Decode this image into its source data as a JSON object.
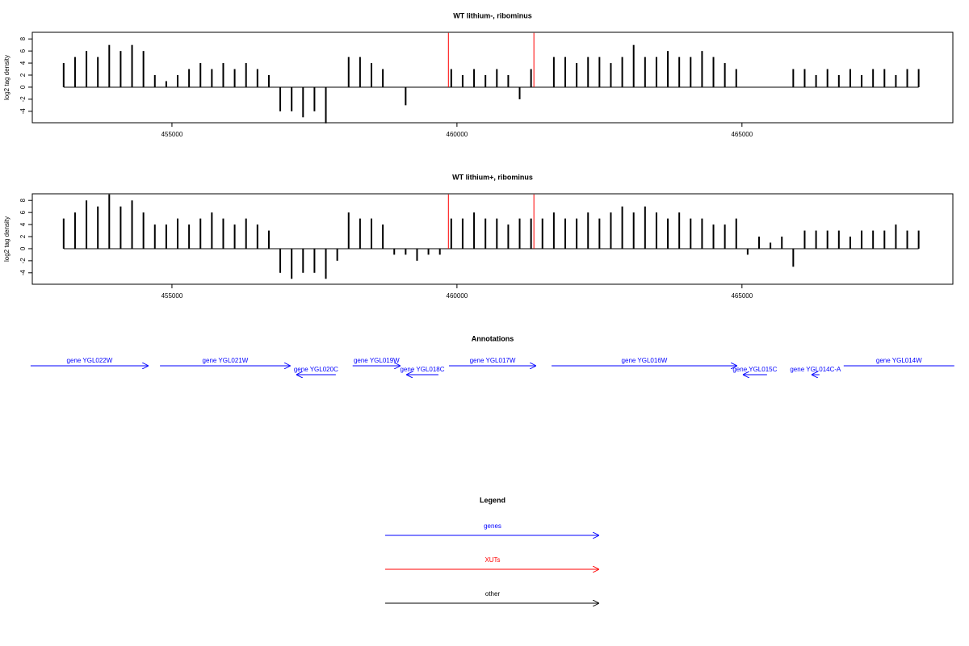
{
  "chart_data": [
    {
      "type": "bar",
      "title": "WT lithium-, ribominus",
      "y_label": "log2 tag density",
      "xlim": [
        452550,
        468700
      ],
      "ylim": [
        -5.9,
        9.1
      ],
      "xticks": [
        455000,
        460000,
        465000
      ],
      "yticks": [
        -4,
        -2,
        0,
        2,
        4,
        6,
        8
      ],
      "x": [
        453100,
        453300,
        453500,
        453700,
        453900,
        454100,
        454300,
        454500,
        454700,
        454900,
        455100,
        455300,
        455500,
        455700,
        455900,
        456100,
        456300,
        456500,
        456700,
        456900,
        457100,
        457300,
        457500,
        457700,
        457900,
        458100,
        458300,
        458500,
        458700,
        458900,
        459100,
        459300,
        459500,
        459700,
        459900,
        460100,
        460300,
        460500,
        460700,
        460900,
        461100,
        461300,
        461500,
        461700,
        461900,
        462100,
        462300,
        462500,
        462700,
        462900,
        463100,
        463300,
        463500,
        463700,
        463900,
        464100,
        464300,
        464500,
        464700,
        464900,
        465100,
        465300,
        465500,
        465700,
        465900,
        466100,
        466300,
        466500,
        466700,
        466900,
        467100,
        467300,
        467500,
        467700,
        467900,
        468100
      ],
      "values": [
        4,
        5,
        6,
        5,
        7,
        6,
        7,
        6,
        2,
        1,
        2,
        3,
        4,
        3,
        4,
        3,
        4,
        3,
        2,
        -4,
        -4,
        -5,
        -4,
        -6,
        0,
        5,
        5,
        4,
        3,
        0,
        -3,
        0,
        0,
        0,
        3,
        2,
        3,
        2,
        3,
        2,
        -2,
        3,
        0,
        5,
        5,
        4,
        5,
        5,
        4,
        5,
        7,
        5,
        5,
        6,
        5,
        5,
        6,
        5,
        4,
        3,
        0,
        0,
        0,
        0,
        3,
        3,
        2,
        3,
        2,
        3,
        2,
        3,
        3,
        2,
        3,
        3
      ],
      "color": "#000000",
      "xut_x": [
        459850,
        461350
      ],
      "xut_values": [
        9,
        9
      ],
      "xut_color": "#ff0000"
    },
    {
      "type": "bar",
      "title": "WT lithium+, ribominus",
      "y_label": "log2 tag density",
      "xlim": [
        452550,
        468700
      ],
      "ylim": [
        -5.9,
        9.1
      ],
      "xticks": [
        455000,
        460000,
        465000
      ],
      "yticks": [
        -4,
        -2,
        0,
        2,
        4,
        6,
        8
      ],
      "x": [
        453100,
        453300,
        453500,
        453700,
        453900,
        454100,
        454300,
        454500,
        454700,
        454900,
        455100,
        455300,
        455500,
        455700,
        455900,
        456100,
        456300,
        456500,
        456700,
        456900,
        457100,
        457300,
        457500,
        457700,
        457900,
        458100,
        458300,
        458500,
        458700,
        458900,
        459100,
        459300,
        459500,
        459700,
        459900,
        460100,
        460300,
        460500,
        460700,
        460900,
        461100,
        461300,
        461500,
        461700,
        461900,
        462100,
        462300,
        462500,
        462700,
        462900,
        463100,
        463300,
        463500,
        463700,
        463900,
        464100,
        464300,
        464500,
        464700,
        464900,
        465100,
        465300,
        465500,
        465700,
        465900,
        466100,
        466300,
        466500,
        466700,
        466900,
        467100,
        467300,
        467500,
        467700,
        467900,
        468100
      ],
      "values": [
        5,
        6,
        8,
        7,
        9,
        7,
        8,
        6,
        4,
        4,
        5,
        4,
        5,
        6,
        5,
        4,
        5,
        4,
        3,
        -4,
        -5,
        -4,
        -4,
        -5,
        -2,
        6,
        5,
        5,
        4,
        -1,
        -1,
        -2,
        -1,
        -1,
        5,
        5,
        6,
        5,
        5,
        4,
        5,
        5,
        5,
        6,
        5,
        5,
        6,
        5,
        6,
        7,
        6,
        7,
        6,
        5,
        6,
        5,
        5,
        4,
        4,
        5,
        -1,
        2,
        1,
        2,
        -3,
        3,
        3,
        3,
        3,
        2,
        3,
        3,
        3,
        4,
        3,
        3
      ],
      "color": "#000000",
      "xut_x": [
        459850,
        461350
      ],
      "xut_values": [
        9,
        9
      ],
      "xut_color": "#ff0000"
    }
  ],
  "annotations": {
    "title": "Annotations",
    "xlim": [
      452550,
      468700
    ],
    "color": "#0000ff",
    "genes": [
      {
        "label": "gene YGL022W",
        "start": 452520,
        "end": 454590,
        "strand": "+"
      },
      {
        "label": "gene YGL021W",
        "start": 454790,
        "end": 457080,
        "strand": "+"
      },
      {
        "label": "gene YGL020C",
        "start": 457180,
        "end": 457875,
        "strand": "-"
      },
      {
        "label": "gene YGL019W",
        "start": 458170,
        "end": 459010,
        "strand": "+"
      },
      {
        "label": "gene YGL018C",
        "start": 459110,
        "end": 459675,
        "strand": "-"
      },
      {
        "label": "gene YGL017W",
        "start": 459860,
        "end": 461390,
        "strand": "+"
      },
      {
        "label": "gene YGL016W",
        "start": 461660,
        "end": 464915,
        "strand": "+"
      },
      {
        "label": "gene YGL015C",
        "start": 465015,
        "end": 465440,
        "strand": "-"
      },
      {
        "label": "gene YGL014C-A",
        "start": 466220,
        "end": 466360,
        "strand": "-"
      },
      {
        "label": "gene YGL014W",
        "start": 466785,
        "end": 468725,
        "strand": "+"
      }
    ]
  },
  "legend": {
    "title": "Legend",
    "items": [
      {
        "label": "genes",
        "color": "#0000ff"
      },
      {
        "label": "XUTs",
        "color": "#ff0000"
      },
      {
        "label": "other",
        "color": "#000000"
      }
    ]
  }
}
